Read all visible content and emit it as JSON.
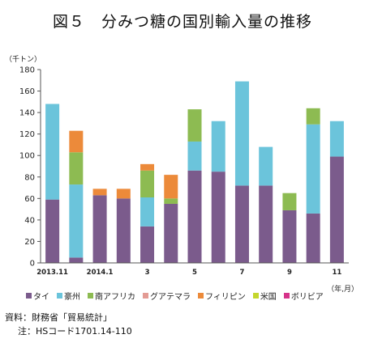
{
  "title": "図５　分みつ糖の国別輸入量の推移",
  "unit_label": "（千トン）",
  "x_unit_label": "（年,月）",
  "notes": {
    "source": "資料：財務省「貿易統計」",
    "note": "注：HSコード1701.14-110"
  },
  "chart_data": {
    "type": "bar",
    "stacked": true,
    "categories": [
      "2013.11",
      "12",
      "2014.1",
      "2",
      "3",
      "4",
      "5",
      "6",
      "7",
      "8",
      "9",
      "10",
      "11"
    ],
    "tick_labels": [
      "2013.11",
      "",
      "2014.1",
      "",
      "3",
      "",
      "5",
      "",
      "7",
      "",
      "9",
      "",
      "11"
    ],
    "ylim": [
      0,
      180
    ],
    "yticks": [
      0,
      20,
      40,
      60,
      80,
      100,
      120,
      140,
      160,
      180
    ],
    "grid": false,
    "legend_position": "bottom",
    "series": [
      {
        "name": "タイ",
        "color": "#7b5b8c",
        "values": [
          59,
          5,
          63,
          60,
          34,
          55,
          86,
          85,
          72,
          72,
          49,
          46,
          99
        ]
      },
      {
        "name": "豪州",
        "color": "#6bc4db",
        "values": [
          89,
          68,
          0,
          0,
          27,
          0,
          27,
          47,
          97,
          36,
          0,
          83,
          33
        ]
      },
      {
        "name": "南アフリカ",
        "color": "#8dbb52",
        "values": [
          0,
          30,
          0,
          0,
          25,
          5,
          30,
          0,
          0,
          0,
          16,
          15,
          0
        ]
      },
      {
        "name": "グアテマラ",
        "color": "#e39b94",
        "values": [
          0,
          0,
          0,
          0,
          0,
          0,
          0,
          0,
          0,
          0,
          0,
          0,
          0
        ]
      },
      {
        "name": "フィリピン",
        "color": "#ec8a3a",
        "values": [
          0,
          20,
          6,
          9,
          6,
          22,
          0,
          0,
          0,
          0,
          0,
          0,
          0
        ]
      },
      {
        "name": "米国",
        "color": "#c4d62d",
        "values": [
          0,
          0,
          0,
          0,
          0,
          0,
          0,
          0,
          0,
          0,
          0,
          0,
          0
        ]
      },
      {
        "name": "ボリビア",
        "color": "#d6338a",
        "values": [
          0,
          0,
          0,
          0,
          0,
          0,
          0,
          0,
          0,
          0,
          0,
          0,
          0
        ]
      }
    ]
  }
}
